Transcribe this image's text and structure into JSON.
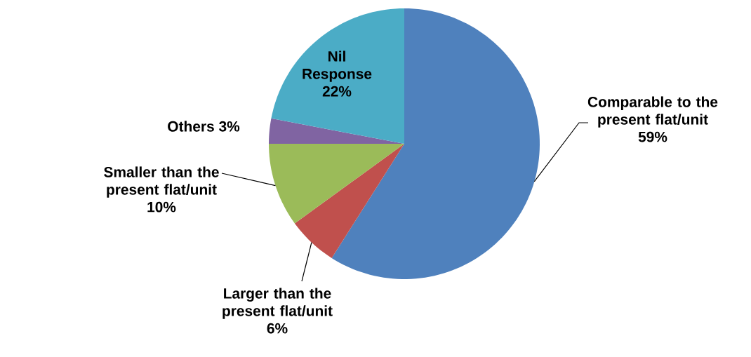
{
  "chart_data": {
    "type": "pie",
    "categories": [
      "Comparable to the present flat/unit",
      "Larger than the present flat/unit",
      "Smaller than the present flat/unit",
      "Others",
      "Nil Response"
    ],
    "values": [
      59,
      6,
      10,
      3,
      22
    ],
    "colors": [
      "#4f81bd",
      "#c0504d",
      "#9bbb59",
      "#8064a2",
      "#4bacc6"
    ],
    "value_labels": [
      "59%",
      "6%",
      "10%",
      "3%",
      "22%"
    ]
  }
}
